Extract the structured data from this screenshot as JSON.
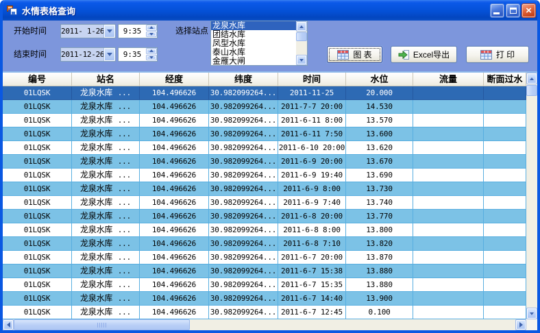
{
  "window": {
    "title": "水情表格查询"
  },
  "filters": {
    "start_label": "开始时间",
    "end_label": "结束时间",
    "start_date": "2011- 1-26",
    "start_time": "9:35",
    "end_date": "2011-12-26",
    "end_time": "9:35",
    "station_label": "选择站点",
    "stations": [
      "龙泉水库",
      "团结水库",
      "凤型水库",
      "泰山水库",
      "金雁大闸"
    ],
    "selected_station": "龙泉水库"
  },
  "actions": {
    "chart": "图  表",
    "export": "Excel导出",
    "print": "打  印"
  },
  "table": {
    "columns": [
      "编号",
      "站名",
      "经度",
      "纬度",
      "时间",
      "水位",
      "流量",
      "断面过水"
    ],
    "rows": [
      {
        "id": "01LQSK",
        "station": "龙泉水库",
        "dots": "...",
        "lon": "104.496626",
        "lat": "30.982099264...",
        "time": "2011-11-25",
        "level": "20.000",
        "flow": "",
        "section": "",
        "selected": true
      },
      {
        "id": "01LQSK",
        "station": "龙泉水库",
        "dots": "...",
        "lon": "104.496626",
        "lat": "30.982099264...",
        "time": "2011-7-7 20:00",
        "level": "14.530",
        "flow": "",
        "section": ""
      },
      {
        "id": "01LQSK",
        "station": "龙泉水库",
        "dots": "...",
        "lon": "104.496626",
        "lat": "30.982099264...",
        "time": "2011-6-11 8:00",
        "level": "13.570",
        "flow": "",
        "section": ""
      },
      {
        "id": "01LQSK",
        "station": "龙泉水库",
        "dots": "...",
        "lon": "104.496626",
        "lat": "30.982099264...",
        "time": "2011-6-11 7:50",
        "level": "13.600",
        "flow": "",
        "section": ""
      },
      {
        "id": "01LQSK",
        "station": "龙泉水库",
        "dots": "...",
        "lon": "104.496626",
        "lat": "30.982099264...",
        "time": "2011-6-10 20:00",
        "level": "13.620",
        "flow": "",
        "section": ""
      },
      {
        "id": "01LQSK",
        "station": "龙泉水库",
        "dots": "...",
        "lon": "104.496626",
        "lat": "30.982099264...",
        "time": "2011-6-9 20:00",
        "level": "13.670",
        "flow": "",
        "section": ""
      },
      {
        "id": "01LQSK",
        "station": "龙泉水库",
        "dots": "...",
        "lon": "104.496626",
        "lat": "30.982099264...",
        "time": "2011-6-9 19:40",
        "level": "13.690",
        "flow": "",
        "section": ""
      },
      {
        "id": "01LQSK",
        "station": "龙泉水库",
        "dots": "...",
        "lon": "104.496626",
        "lat": "30.982099264...",
        "time": "2011-6-9 8:00",
        "level": "13.730",
        "flow": "",
        "section": ""
      },
      {
        "id": "01LQSK",
        "station": "龙泉水库",
        "dots": "...",
        "lon": "104.496626",
        "lat": "30.982099264...",
        "time": "2011-6-9 7:40",
        "level": "13.740",
        "flow": "",
        "section": ""
      },
      {
        "id": "01LQSK",
        "station": "龙泉水库",
        "dots": "...",
        "lon": "104.496626",
        "lat": "30.982099264...",
        "time": "2011-6-8 20:00",
        "level": "13.770",
        "flow": "",
        "section": ""
      },
      {
        "id": "01LQSK",
        "station": "龙泉水库",
        "dots": "...",
        "lon": "104.496626",
        "lat": "30.982099264...",
        "time": "2011-6-8 8:00",
        "level": "13.800",
        "flow": "",
        "section": ""
      },
      {
        "id": "01LQSK",
        "station": "龙泉水库",
        "dots": "...",
        "lon": "104.496626",
        "lat": "30.982099264...",
        "time": "2011-6-8 7:10",
        "level": "13.820",
        "flow": "",
        "section": ""
      },
      {
        "id": "01LQSK",
        "station": "龙泉水库",
        "dots": "...",
        "lon": "104.496626",
        "lat": "30.982099264...",
        "time": "2011-6-7 20:00",
        "level": "13.870",
        "flow": "",
        "section": ""
      },
      {
        "id": "01LQSK",
        "station": "龙泉水库",
        "dots": "...",
        "lon": "104.496626",
        "lat": "30.982099264...",
        "time": "2011-6-7 15:38",
        "level": "13.880",
        "flow": "",
        "section": ""
      },
      {
        "id": "01LQSK",
        "station": "龙泉水库",
        "dots": "...",
        "lon": "104.496626",
        "lat": "30.982099264...",
        "time": "2011-6-7 15:35",
        "level": "13.880",
        "flow": "",
        "section": ""
      },
      {
        "id": "01LQSK",
        "station": "龙泉水库",
        "dots": "...",
        "lon": "104.496626",
        "lat": "30.982099264...",
        "time": "2011-6-7 14:40",
        "level": "13.900",
        "flow": "",
        "section": ""
      },
      {
        "id": "01LQSK",
        "station": "龙泉水库",
        "dots": "...",
        "lon": "104.496626",
        "lat": "30.982099264...",
        "time": "2011-6-7 12:45",
        "level": "0.100",
        "flow": "",
        "section": ""
      }
    ]
  },
  "colors": {
    "accent_frame": "#0A58E2",
    "panel": "#7D96DC",
    "header_bg": "#F4F3EC",
    "row_alt": "#7CC2E6",
    "row_selected": "#2D6AB4",
    "grid_line": "#58AEE0",
    "list_highlight": "#2F63BE",
    "close_button": "#D0562E"
  }
}
